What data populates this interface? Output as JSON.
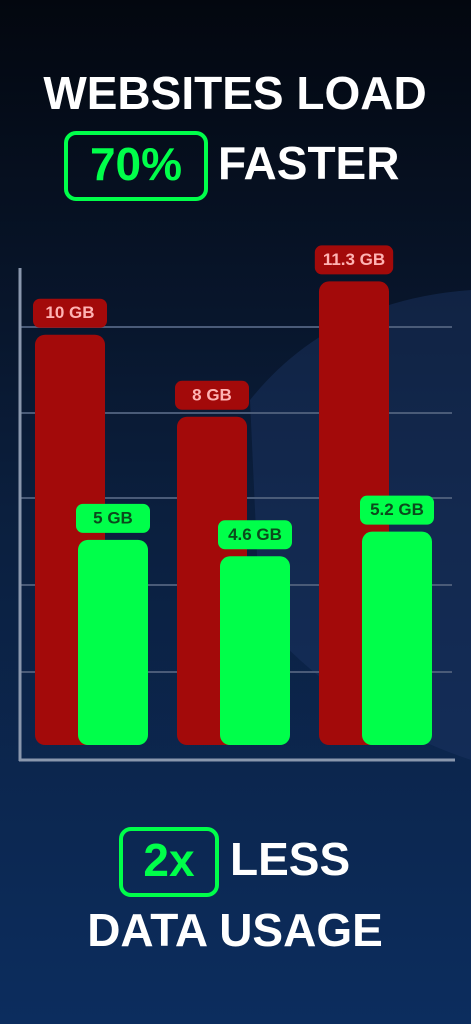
{
  "headline": {
    "line1": "WEBSITES LOAD",
    "badge": "70%",
    "line2": "FASTER"
  },
  "chart_data": {
    "type": "bar",
    "categories": [
      null,
      null,
      null
    ],
    "series": [
      {
        "name": null,
        "color": "#a30a0a",
        "values": [
          10,
          8,
          11.3
        ],
        "value_labels": [
          "10 GB",
          "8 GB",
          "11.3 GB"
        ]
      },
      {
        "name": null,
        "color": "#00ff4a",
        "values": [
          5,
          4.6,
          5.2
        ],
        "value_labels": [
          "5 GB",
          "4.6 GB",
          "5.2 GB"
        ]
      }
    ],
    "ylim": [
      0,
      11.7
    ]
  },
  "footer": {
    "badge": "2x",
    "line1": "LESS",
    "line2": "DATA USAGE"
  }
}
